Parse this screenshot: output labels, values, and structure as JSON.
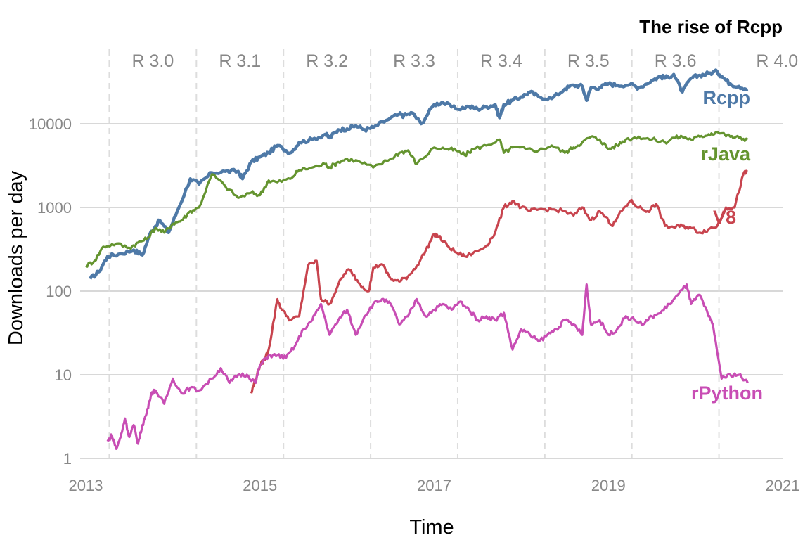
{
  "chart_data": {
    "type": "line",
    "title": "The rise of Rcpp",
    "xlabel": "Time",
    "ylabel": "Downloads per day",
    "y_scale": "log",
    "ylim": [
      1,
      60000
    ],
    "xlim": [
      2013.0,
      2021.0
    ],
    "x_ticks": [
      "2013",
      "2015",
      "2017",
      "2019",
      "2021"
    ],
    "y_ticks": [
      "1",
      "10",
      "100",
      "1000",
      "10000"
    ],
    "grid": true,
    "legend": "direct labels at right end of each line",
    "r_versions": [
      {
        "label": "R 3.0",
        "x": 2013.27
      },
      {
        "label": "R 3.1",
        "x": 2014.27
      },
      {
        "label": "R 3.2",
        "x": 2015.27
      },
      {
        "label": "R 3.3",
        "x": 2016.27
      },
      {
        "label": "R 3.4",
        "x": 2017.27
      },
      {
        "label": "R 3.5",
        "x": 2018.27
      },
      {
        "label": "R 3.6",
        "x": 2019.27
      },
      {
        "label": "R 4.0",
        "x": 2020.27
      }
    ],
    "series": [
      {
        "name": "Rcpp",
        "color": "#4e79a7",
        "x": [
          2013.05,
          2013.15,
          2013.25,
          2013.4,
          2013.55,
          2013.65,
          2013.75,
          2013.85,
          2013.95,
          2014.05,
          2014.2,
          2014.3,
          2014.45,
          2014.6,
          2014.75,
          2014.8,
          2014.9,
          2015.0,
          2015.1,
          2015.2,
          2015.35,
          2015.45,
          2015.6,
          2015.75,
          2015.8,
          2015.9,
          2016.0,
          2016.1,
          2016.2,
          2016.3,
          2016.45,
          2016.6,
          2016.65,
          2016.75,
          2016.85,
          2017.0,
          2017.1,
          2017.25,
          2017.4,
          2017.5,
          2017.6,
          2017.7,
          2017.75,
          2017.8,
          2017.9,
          2018.0,
          2018.1,
          2018.2,
          2018.35,
          2018.5,
          2018.6,
          2018.7,
          2018.75,
          2018.8,
          2018.9,
          2019.0,
          2019.1,
          2019.25,
          2019.35,
          2019.5,
          2019.6,
          2019.65,
          2019.75,
          2019.85,
          2019.95,
          2020.05,
          2020.15,
          2020.25,
          2020.3,
          2020.4,
          2020.5,
          2020.6
        ],
        "y": [
          140,
          170,
          260,
          280,
          310,
          270,
          520,
          700,
          500,
          900,
          2200,
          1900,
          2600,
          2700,
          2700,
          2200,
          3500,
          4000,
          4500,
          5500,
          4500,
          6000,
          6500,
          7500,
          6800,
          8500,
          8700,
          9500,
          8500,
          9000,
          11000,
          13000,
          12500,
          13500,
          10000,
          17000,
          18000,
          15000,
          16000,
          15000,
          16000,
          17000,
          11800,
          17000,
          19000,
          21000,
          24000,
          21000,
          20000,
          26000,
          29000,
          28000,
          19000,
          27000,
          27000,
          30000,
          29000,
          29500,
          27000,
          33000,
          37000,
          35000,
          39000,
          24000,
          35000,
          38000,
          40000,
          42000,
          37000,
          30000,
          28000,
          26000
        ]
      },
      {
        "name": "rJava",
        "color": "#64942f",
        "x": [
          2013.0,
          2013.1,
          2013.2,
          2013.35,
          2013.5,
          2013.6,
          2013.7,
          2013.8,
          2013.9,
          2014.0,
          2014.1,
          2014.2,
          2014.3,
          2014.45,
          2014.6,
          2014.75,
          2014.9,
          2015.0,
          2015.1,
          2015.2,
          2015.35,
          2015.45,
          2015.6,
          2015.75,
          2015.8,
          2015.9,
          2016.0,
          2016.15,
          2016.3,
          2016.5,
          2016.6,
          2016.7,
          2016.8,
          2017.0,
          2017.15,
          2017.25,
          2017.35,
          2017.45,
          2017.6,
          2017.75,
          2017.8,
          2017.9,
          2018.05,
          2018.2,
          2018.35,
          2018.5,
          2018.6,
          2018.7,
          2018.8,
          2018.9,
          2019.0,
          2019.1,
          2019.2,
          2019.35,
          2019.5,
          2019.65,
          2019.75,
          2019.85,
          2019.95,
          2020.05,
          2020.15,
          2020.25,
          2020.4,
          2020.5,
          2020.6
        ],
        "y": [
          200,
          230,
          340,
          370,
          330,
          380,
          420,
          570,
          500,
          640,
          700,
          900,
          1000,
          2500,
          1800,
          1300,
          1500,
          1400,
          2100,
          2000,
          2200,
          2800,
          3000,
          3300,
          3000,
          3500,
          3800,
          3500,
          3000,
          3800,
          4500,
          4800,
          3300,
          5200,
          5000,
          4800,
          4200,
          5000,
          5500,
          6500,
          4500,
          5200,
          5000,
          4800,
          5500,
          4500,
          5200,
          6000,
          7000,
          6500,
          5000,
          5500,
          6500,
          7000,
          6500,
          6000,
          6800,
          7000,
          6500,
          7000,
          7500,
          8000,
          7000,
          6800,
          6500
        ]
      },
      {
        "name": "V8",
        "color": "#c8444e",
        "x": [
          2014.9,
          2014.95,
          2015.0,
          2015.05,
          2015.1,
          2015.2,
          2015.25,
          2015.35,
          2015.45,
          2015.55,
          2015.65,
          2015.7,
          2015.8,
          2015.9,
          2016.0,
          2016.05,
          2016.15,
          2016.25,
          2016.3,
          2016.4,
          2016.5,
          2016.6,
          2016.7,
          2016.8,
          2016.9,
          2017.0,
          2017.05,
          2017.15,
          2017.25,
          2017.35,
          2017.5,
          2017.6,
          2017.7,
          2017.8,
          2017.9,
          2018.0,
          2018.1,
          2018.2,
          2018.35,
          2018.5,
          2018.6,
          2018.7,
          2018.8,
          2018.9,
          2019.0,
          2019.05,
          2019.15,
          2019.25,
          2019.35,
          2019.45,
          2019.55,
          2019.65,
          2019.75,
          2019.85,
          2019.95,
          2020.05,
          2020.15,
          2020.25,
          2020.35,
          2020.45,
          2020.55,
          2020.6
        ],
        "y": [
          6,
          9,
          13,
          15,
          20,
          80,
          60,
          45,
          50,
          200,
          230,
          80,
          70,
          120,
          180,
          170,
          120,
          100,
          190,
          210,
          140,
          130,
          150,
          200,
          300,
          480,
          450,
          350,
          290,
          260,
          300,
          350,
          500,
          1000,
          1200,
          1000,
          900,
          950,
          950,
          900,
          800,
          1000,
          700,
          900,
          700,
          600,
          900,
          1200,
          1000,
          900,
          1100,
          600,
          580,
          600,
          570,
          500,
          550,
          600,
          1000,
          1000,
          2500,
          2700
        ]
      },
      {
        "name": "rPython",
        "color": "#c84db4",
        "x": [
          2013.25,
          2013.3,
          2013.35,
          2013.4,
          2013.45,
          2013.5,
          2013.55,
          2013.6,
          2013.65,
          2013.7,
          2013.75,
          2013.8,
          2013.9,
          2014.0,
          2014.1,
          2014.2,
          2014.3,
          2014.45,
          2014.55,
          2014.65,
          2014.75,
          2014.85,
          2014.95,
          2015.0,
          2015.1,
          2015.2,
          2015.3,
          2015.4,
          2015.5,
          2015.6,
          2015.7,
          2015.8,
          2015.9,
          2016.0,
          2016.1,
          2016.2,
          2016.3,
          2016.4,
          2016.5,
          2016.6,
          2016.7,
          2016.8,
          2016.9,
          2017.0,
          2017.1,
          2017.2,
          2017.3,
          2017.4,
          2017.5,
          2017.6,
          2017.7,
          2017.8,
          2017.9,
          2018.0,
          2018.1,
          2018.2,
          2018.3,
          2018.4,
          2018.5,
          2018.6,
          2018.7,
          2018.75,
          2018.8,
          2018.9,
          2019.0,
          2019.1,
          2019.2,
          2019.3,
          2019.4,
          2019.5,
          2019.6,
          2019.7,
          2019.8,
          2019.9,
          2019.95,
          2020.05,
          2020.15,
          2020.2,
          2020.3,
          2020.4,
          2020.5,
          2020.6
        ],
        "y": [
          1.6,
          1.9,
          1.3,
          1.8,
          3,
          1.8,
          2.5,
          1.5,
          2.5,
          3.5,
          6,
          6.5,
          4.5,
          9,
          6,
          7,
          6.5,
          9,
          12,
          8,
          10,
          10,
          8,
          13,
          17,
          17,
          16,
          22,
          35,
          45,
          70,
          30,
          45,
          60,
          30,
          50,
          70,
          80,
          70,
          40,
          50,
          80,
          50,
          60,
          70,
          60,
          75,
          60,
          45,
          50,
          45,
          55,
          20,
          35,
          30,
          25,
          30,
          35,
          45,
          40,
          30,
          120,
          40,
          45,
          30,
          35,
          50,
          45,
          40,
          50,
          55,
          70,
          90,
          120,
          70,
          90,
          50,
          40,
          9,
          10,
          10,
          8
        ]
      }
    ]
  }
}
